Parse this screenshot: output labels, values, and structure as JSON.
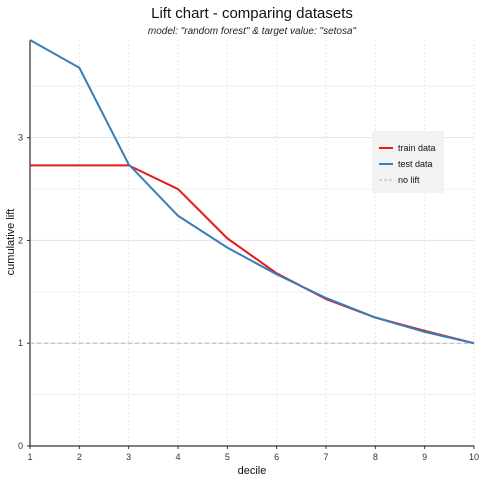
{
  "chart_data": {
    "type": "line",
    "title": "Lift chart - comparing datasets",
    "subtitle": "model: \"random forest\"  &  target value: \"setosa\"",
    "xlabel": "decile",
    "ylabel": "cumulative lift",
    "xlim": [
      1,
      10
    ],
    "ylim": [
      0,
      3.95
    ],
    "x_ticks": [
      "1",
      "2",
      "3",
      "4",
      "5",
      "6",
      "7",
      "8",
      "9",
      "10"
    ],
    "y_ticks": [
      "0",
      "1",
      "2",
      "3"
    ],
    "grid": true,
    "legend_position": "right",
    "x": [
      1,
      2,
      3,
      4,
      5,
      6,
      7,
      8,
      9,
      10
    ],
    "series": [
      {
        "name": "train data",
        "color": "#e41a1c",
        "style": "solid",
        "values": [
          2.73,
          2.73,
          2.73,
          2.5,
          2.02,
          1.68,
          1.43,
          1.25,
          1.12,
          1.0
        ]
      },
      {
        "name": "test data",
        "color": "#377eb8",
        "style": "solid",
        "values": [
          3.95,
          3.68,
          2.74,
          2.24,
          1.93,
          1.67,
          1.44,
          1.25,
          1.11,
          1.0
        ]
      },
      {
        "name": "no lift",
        "color": "#b5b5b5",
        "style": "dashed",
        "values": [
          1,
          1,
          1,
          1,
          1,
          1,
          1,
          1,
          1,
          1
        ]
      }
    ]
  }
}
